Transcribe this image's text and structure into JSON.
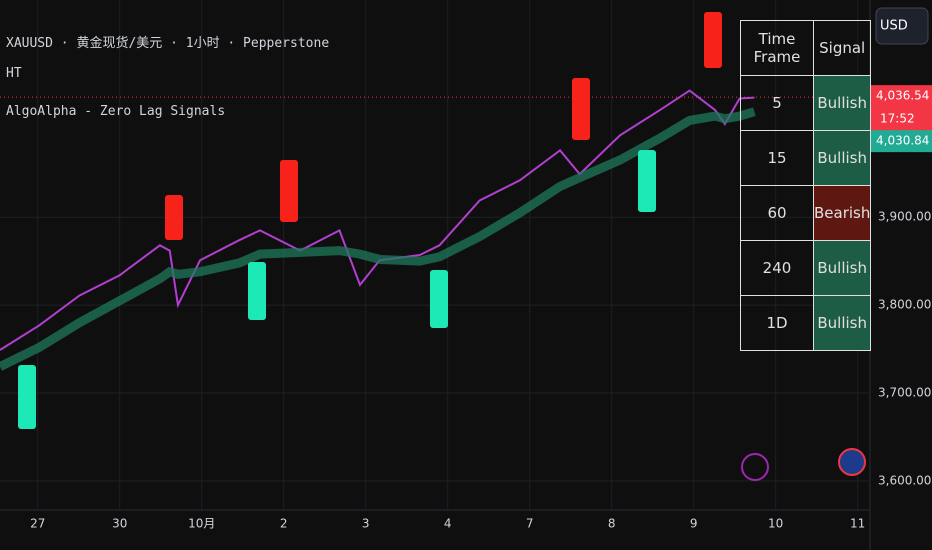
{
  "header": {
    "symbol_line": "XAUUSD · 黄金现货/美元 · 1小时 · Pepperstone",
    "indicator_1": "HT",
    "indicator_2": "AlgoAlpha -  Zero Lag Signals",
    "currency": "USD",
    "countdown": "17:52"
  },
  "chart_data": {
    "type": "line",
    "x": [
      -0.46,
      0.02,
      0.51,
      1,
      1.49,
      1.61,
      1.71,
      1.98,
      2.46,
      2.71,
      3.2,
      3.68,
      3.93,
      4.17,
      4.66,
      4.9,
      5.39,
      5.88,
      6.37,
      6.61,
      7.1,
      7.59,
      7.95,
      8.26,
      8.38,
      8.56,
      8.74
    ],
    "series": [
      {
        "color": "#b23fd0",
        "values": [
          3749,
          3777,
          3811,
          3834,
          3868,
          3862,
          3800,
          3851,
          3874,
          3885,
          3862,
          3885,
          3823,
          3851,
          3857,
          3868,
          3919,
          3942,
          3976,
          3949,
          3993,
          4022,
          4044,
          4022,
          4006,
          4035,
          4036
        ]
      },
      {
        "color": "#1f7a5c",
        "values": [
          3730,
          3752,
          3780,
          3805,
          3830,
          3838,
          3835,
          3838,
          3848,
          3858,
          3860,
          3862,
          3858,
          3852,
          3850,
          3855,
          3878,
          3905,
          3935,
          3945,
          3965,
          3990,
          4010,
          4015,
          4012,
          4015,
          4020
        ]
      }
    ],
    "xlim": [
      -0.46,
      10.15
    ],
    "ylim": [
      3567,
      4147
    ],
    "xticks": [
      {
        "value": 0,
        "label": "27"
      },
      {
        "value": 1,
        "label": "30"
      },
      {
        "value": 2,
        "label": "10月"
      },
      {
        "value": 3,
        "label": "2"
      },
      {
        "value": 4,
        "label": "3"
      },
      {
        "value": 5,
        "label": "4"
      },
      {
        "value": 6,
        "label": "7"
      },
      {
        "value": 7,
        "label": "8"
      },
      {
        "value": 8,
        "label": "9"
      },
      {
        "value": 9,
        "label": "10"
      },
      {
        "value": 10,
        "label": "11"
      }
    ],
    "yticks": [
      {
        "value": 3600,
        "label": "3,600.00"
      },
      {
        "value": 3700,
        "label": "3,700.00"
      },
      {
        "value": 3800,
        "label": "3,800.00"
      },
      {
        "value": 3900,
        "label": "3,900.00"
      }
    ],
    "price_tags": [
      {
        "value": 4036.54,
        "label": "4,036.54",
        "color": "#f23645"
      },
      {
        "value": 4030.84,
        "label": "4,030.84",
        "color": "#22ab94"
      }
    ],
    "grid": true
  },
  "table": {
    "header": [
      "Time Frame",
      "Signal"
    ],
    "rows": [
      [
        "5",
        "Bullish"
      ],
      [
        "15",
        "Bullish"
      ],
      [
        "60",
        "Bearish"
      ],
      [
        "240",
        "Bullish"
      ],
      [
        "1D",
        "Bullish"
      ]
    ],
    "signal_colors": {
      "Bullish": "#1d5c45",
      "Bearish": "#5e1811"
    }
  }
}
